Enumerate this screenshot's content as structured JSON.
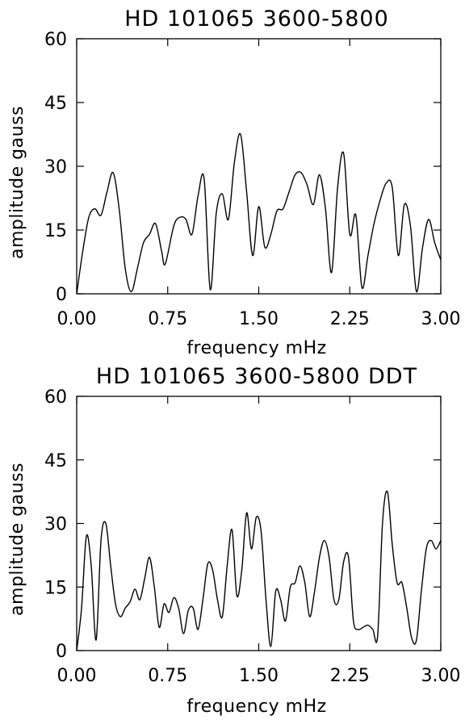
{
  "chart_data": [
    {
      "type": "line",
      "title": "HD 101065 3600-5800",
      "xlabel": "frequency mHz",
      "ylabel": "amplitude gauss",
      "xlim": [
        0,
        3.0
      ],
      "ylim": [
        0,
        60
      ],
      "xticks": [
        "0.00",
        "0.75",
        "1.50",
        "2.25",
        "3.00"
      ],
      "xtick_values": [
        0,
        0.75,
        1.5,
        2.25,
        3.0
      ],
      "yticks": [
        "0",
        "15",
        "30",
        "45",
        "60"
      ],
      "ytick_values": [
        0,
        15,
        30,
        45,
        60
      ],
      "color": "#000000",
      "x": [
        0.0,
        0.05,
        0.1,
        0.15,
        0.2,
        0.25,
        0.3,
        0.35,
        0.4,
        0.45,
        0.5,
        0.55,
        0.6,
        0.65,
        0.7,
        0.73,
        0.8,
        0.85,
        0.9,
        0.95,
        1.0,
        1.05,
        1.1,
        1.15,
        1.2,
        1.25,
        1.3,
        1.35,
        1.4,
        1.45,
        1.5,
        1.55,
        1.6,
        1.65,
        1.7,
        1.75,
        1.8,
        1.85,
        1.9,
        1.95,
        2.0,
        2.05,
        2.1,
        2.15,
        2.2,
        2.25,
        2.3,
        2.35,
        2.4,
        2.45,
        2.5,
        2.55,
        2.6,
        2.65,
        2.7,
        2.75,
        2.8,
        2.85,
        2.9,
        2.95,
        3.0
      ],
      "y": [
        0.0,
        10.0,
        18.0,
        20.0,
        18.5,
        24.0,
        28.5,
        20.0,
        6.0,
        0.5,
        6.0,
        12.0,
        14.0,
        16.5,
        10.0,
        7.0,
        16.0,
        18.0,
        17.5,
        14.0,
        23.0,
        27.0,
        1.0,
        19.0,
        23.5,
        17.5,
        31.0,
        37.5,
        24.0,
        9.0,
        20.5,
        11.0,
        14.0,
        19.5,
        20.0,
        24.0,
        28.0,
        28.5,
        25.5,
        21.0,
        28.0,
        20.0,
        5.0,
        25.0,
        33.0,
        14.0,
        18.5,
        1.5,
        9.0,
        16.5,
        22.0,
        26.0,
        25.0,
        9.0,
        21.0,
        16.0,
        0.5,
        11.0,
        17.5,
        12.0,
        8.0
      ]
    },
    {
      "type": "line",
      "title": "HD 101065 3600-5800 DDT",
      "xlabel": "frequency mHz",
      "ylabel": "amplitude gauss",
      "xlim": [
        0,
        3.0
      ],
      "ylim": [
        0,
        60
      ],
      "xticks": [
        "0.00",
        "0.75",
        "1.50",
        "2.25",
        "3.00"
      ],
      "xtick_values": [
        0,
        0.75,
        1.5,
        2.25,
        3.0
      ],
      "yticks": [
        "0",
        "15",
        "30",
        "45",
        "60"
      ],
      "ytick_values": [
        0,
        15,
        30,
        45,
        60
      ],
      "color": "#000000",
      "x": [
        0.0,
        0.04,
        0.08,
        0.12,
        0.16,
        0.2,
        0.24,
        0.28,
        0.32,
        0.36,
        0.4,
        0.44,
        0.48,
        0.52,
        0.56,
        0.6,
        0.64,
        0.68,
        0.72,
        0.76,
        0.8,
        0.84,
        0.88,
        0.92,
        0.96,
        1.0,
        1.04,
        1.08,
        1.12,
        1.16,
        1.2,
        1.24,
        1.28,
        1.32,
        1.36,
        1.4,
        1.44,
        1.48,
        1.52,
        1.56,
        1.6,
        1.64,
        1.68,
        1.72,
        1.76,
        1.8,
        1.84,
        1.88,
        1.92,
        1.96,
        2.0,
        2.04,
        2.08,
        2.12,
        2.16,
        2.2,
        2.24,
        2.28,
        2.32,
        2.36,
        2.4,
        2.44,
        2.48,
        2.52,
        2.56,
        2.6,
        2.64,
        2.68,
        2.72,
        2.76,
        2.8,
        2.84,
        2.88,
        2.92,
        2.96,
        3.0
      ],
      "y": [
        0.0,
        10.0,
        27.0,
        20.0,
        2.5,
        26.0,
        30.0,
        20.0,
        11.0,
        8.0,
        10.0,
        11.5,
        14.5,
        12.0,
        17.0,
        22.0,
        15.0,
        5.5,
        11.0,
        9.0,
        12.5,
        10.0,
        4.0,
        9.5,
        10.0,
        5.0,
        12.0,
        20.5,
        19.0,
        12.0,
        8.0,
        20.0,
        28.5,
        13.0,
        19.0,
        32.5,
        24.0,
        31.5,
        28.0,
        12.0,
        1.0,
        14.0,
        12.0,
        7.0,
        15.0,
        16.0,
        20.0,
        16.0,
        8.0,
        14.0,
        22.0,
        26.0,
        22.0,
        12.0,
        12.0,
        21.0,
        22.0,
        7.0,
        5.0,
        5.5,
        6.0,
        5.0,
        3.5,
        30.0,
        37.5,
        25.0,
        16.0,
        16.0,
        10.0,
        3.0,
        2.5,
        14.0,
        24.0,
        26.0,
        24.0,
        26.0
      ]
    }
  ]
}
